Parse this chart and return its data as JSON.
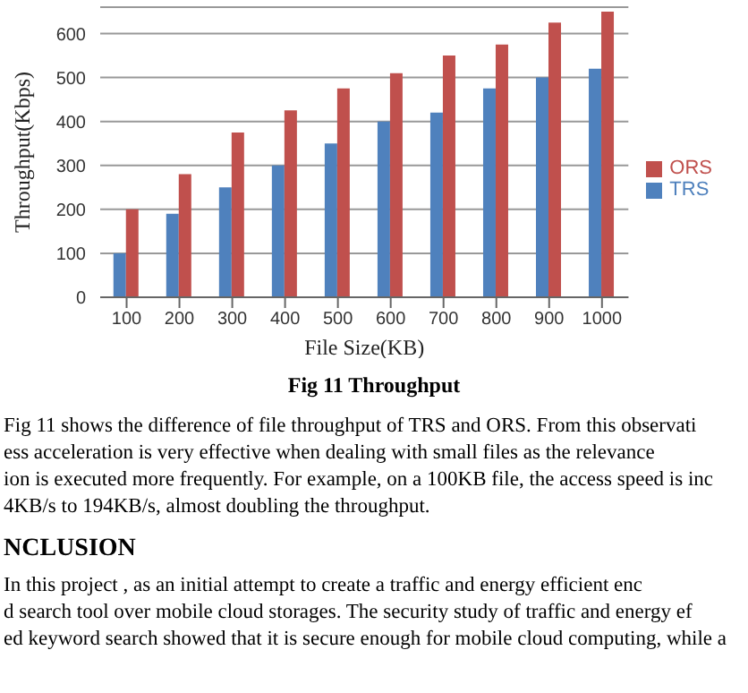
{
  "chart_data": {
    "type": "bar",
    "title": "Fig 11 Throughput",
    "xlabel": "File Size(KB)",
    "ylabel": "Throughput(Kbps)",
    "categories": [
      "100",
      "200",
      "300",
      "400",
      "500",
      "600",
      "700",
      "800",
      "900",
      "1000"
    ],
    "series": [
      {
        "name": "TRS",
        "color": "#4f81bd",
        "values": [
          100,
          190,
          250,
          300,
          350,
          400,
          420,
          475,
          500,
          520
        ]
      },
      {
        "name": "ORS",
        "color": "#c0504d",
        "values": [
          200,
          280,
          375,
          425,
          475,
          510,
          550,
          575,
          625,
          650
        ]
      }
    ],
    "ylim": [
      0,
      660
    ],
    "yticks": [
      0,
      100,
      200,
      300,
      400,
      500,
      600
    ],
    "grid": "y",
    "legend": "right",
    "annotations": [
      "Fig 11 shows the difference of file throughput of TRS and ORS. From this observati",
      "ess acceleration is very effective when dealing with small files as the relevance",
      "ion is executed more frequently. For example, on a 100KB file, the access speed is inc",
      "4KB/s to 194KB/s, almost doubling the throughput.",
      "NCLUSION",
      "In this project , as an initial attempt to create a traffic and energy efficient enc",
      "d search tool over mobile cloud storages. The security study of traffic and energy ef",
      "ed keyword search showed that it is secure enough for mobile cloud computing, while a"
    ]
  }
}
